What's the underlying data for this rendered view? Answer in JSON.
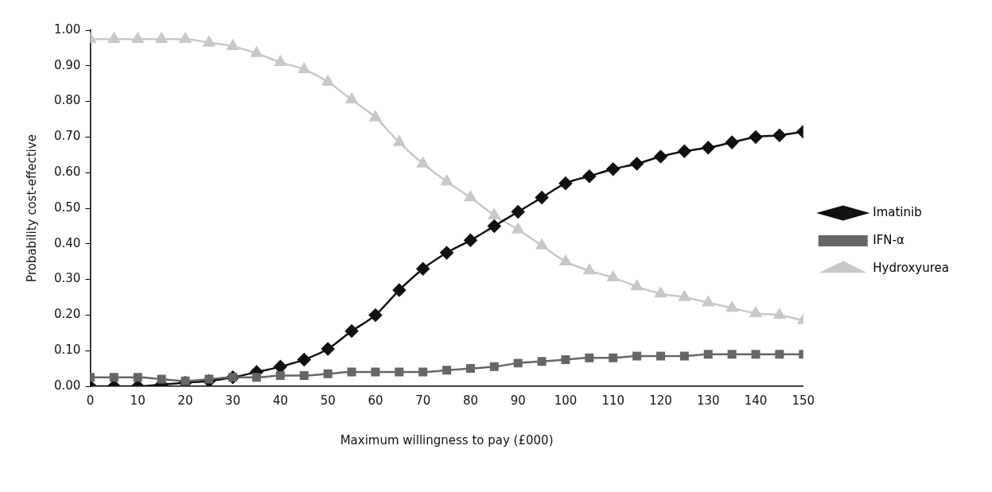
{
  "chart_data": {
    "type": "line",
    "xlabel": "Maximum willingness to pay (£000)",
    "ylabel": "Probability cost-effective",
    "x": [
      0,
      5,
      10,
      15,
      20,
      25,
      30,
      35,
      40,
      45,
      50,
      55,
      60,
      65,
      70,
      75,
      80,
      85,
      90,
      95,
      100,
      105,
      110,
      115,
      120,
      125,
      130,
      135,
      140,
      145,
      150
    ],
    "xlim": [
      0,
      150
    ],
    "xticks": [
      0,
      10,
      20,
      30,
      40,
      50,
      60,
      70,
      80,
      90,
      100,
      110,
      120,
      130,
      140,
      150
    ],
    "ylim": [
      0,
      1
    ],
    "yticks": [
      {
        "value": 0,
        "label": "0.00"
      },
      {
        "value": 0.1,
        "label": "0.10"
      },
      {
        "value": 0.2,
        "label": "0.20"
      },
      {
        "value": 0.3,
        "label": "0.30"
      },
      {
        "value": 0.4,
        "label": "0.40"
      },
      {
        "value": 0.5,
        "label": "0.50"
      },
      {
        "value": 0.6,
        "label": "0.60"
      },
      {
        "value": 0.7,
        "label": "0.70"
      },
      {
        "value": 0.8,
        "label": "0.80"
      },
      {
        "value": 0.9,
        "label": "0.90"
      },
      {
        "value": 1,
        "label": "1.00"
      }
    ],
    "grid": false,
    "legend": "right",
    "line_style": "solid",
    "series": [
      {
        "name": "Imatinib",
        "color": "#111111",
        "marker": "diamond",
        "values": [
          0,
          0,
          0,
          0.005,
          0.01,
          0.015,
          0.025,
          0.04,
          0.055,
          0.075,
          0.105,
          0.155,
          0.2,
          0.27,
          0.33,
          0.375,
          0.41,
          0.45,
          0.49,
          0.53,
          0.57,
          0.59,
          0.61,
          0.625,
          0.645,
          0.66,
          0.67,
          0.685,
          0.7,
          0.705,
          0.715
        ]
      },
      {
        "name": "IFN-α",
        "color": "#666666",
        "marker": "square",
        "values": [
          0.025,
          0.025,
          0.025,
          0.02,
          0.015,
          0.02,
          0.025,
          0.025,
          0.03,
          0.03,
          0.035,
          0.04,
          0.04,
          0.04,
          0.04,
          0.045,
          0.05,
          0.055,
          0.065,
          0.07,
          0.075,
          0.08,
          0.08,
          0.085,
          0.085,
          0.085,
          0.09,
          0.09,
          0.09,
          0.09,
          0.09
        ]
      },
      {
        "name": "Hydroxyurea",
        "color": "#c8c8c8",
        "marker": "triangle",
        "values": [
          0.975,
          0.975,
          0.975,
          0.975,
          0.975,
          0.965,
          0.955,
          0.935,
          0.91,
          0.89,
          0.855,
          0.805,
          0.755,
          0.685,
          0.625,
          0.575,
          0.53,
          0.48,
          0.44,
          0.395,
          0.35,
          0.325,
          0.305,
          0.28,
          0.26,
          0.25,
          0.235,
          0.22,
          0.205,
          0.2,
          0.185
        ]
      }
    ]
  }
}
